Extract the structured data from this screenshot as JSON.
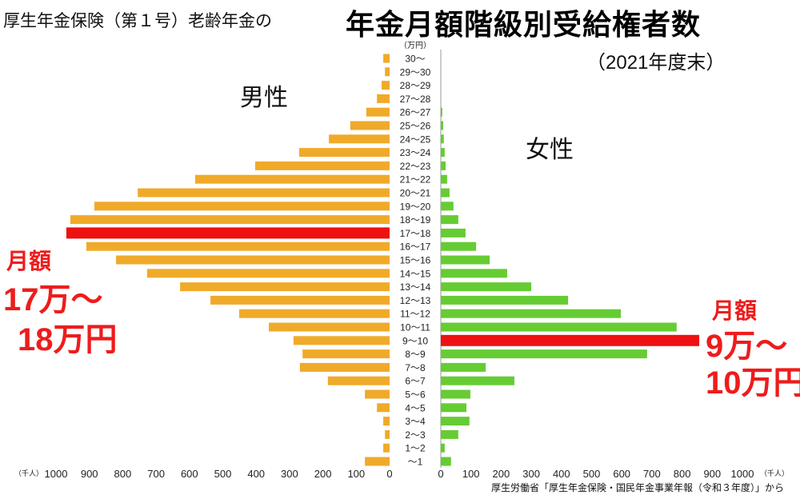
{
  "chart_data": {
    "type": "bar",
    "orientation": "horizontal-population-pyramid",
    "subtitle": "厚生年金保険（第１号）老齢年金の",
    "title": "年金月額階級別受給権者数",
    "period": "（2021年度末）",
    "category_unit": "（万円）",
    "value_unit": "（千人）",
    "categories": [
      "30〜",
      "29〜30",
      "28〜29",
      "27〜28",
      "26〜27",
      "25〜26",
      "24〜25",
      "23〜24",
      "22〜23",
      "21〜22",
      "20〜21",
      "19〜20",
      "18〜19",
      "17〜18",
      "16〜17",
      "15〜16",
      "14〜15",
      "13〜14",
      "12〜13",
      "11〜12",
      "10〜11",
      "9〜10",
      "8〜9",
      "7〜8",
      "6〜7",
      "5〜6",
      "4〜5",
      "3〜4",
      "2〜3",
      "1〜2",
      "〜1"
    ],
    "series": [
      {
        "name": "男性",
        "color": "#f0aa2a",
        "highlight_color": "#ee1111",
        "highlight": "17〜18",
        "values": [
          19,
          14,
          24,
          38,
          70,
          118,
          182,
          271,
          403,
          583,
          755,
          885,
          957,
          969,
          909,
          820,
          727,
          628,
          537,
          451,
          362,
          288,
          261,
          269,
          185,
          74,
          38,
          19,
          14,
          19,
          74
        ]
      },
      {
        "name": "女性",
        "color": "#66cc33",
        "highlight_color": "#ee1111",
        "highlight": "9〜10",
        "values": [
          0,
          0,
          0,
          0,
          5,
          8,
          10,
          13,
          16,
          21,
          29,
          42,
          58,
          82,
          117,
          162,
          220,
          300,
          422,
          597,
          782,
          857,
          684,
          149,
          244,
          98,
          85,
          95,
          58,
          13,
          34
        ]
      }
    ],
    "xticks": [
      "1000",
      "900",
      "800",
      "700",
      "600",
      "500",
      "400",
      "300",
      "200",
      "100",
      "0"
    ],
    "xticks_right": [
      "0",
      "100",
      "200",
      "300",
      "400",
      "500",
      "600",
      "700",
      "800",
      "900",
      "1000"
    ],
    "xlim": [
      0,
      1000
    ],
    "annotations": {
      "male_label": "月額",
      "male_range_1": "17万〜",
      "male_range_2": "18万円",
      "female_label": "月額",
      "female_range_1": "9万〜",
      "female_range_2": "10万円"
    },
    "source": "厚生労働省「厚生年金保険・国民年金事業年報（令和３年度）」から"
  }
}
